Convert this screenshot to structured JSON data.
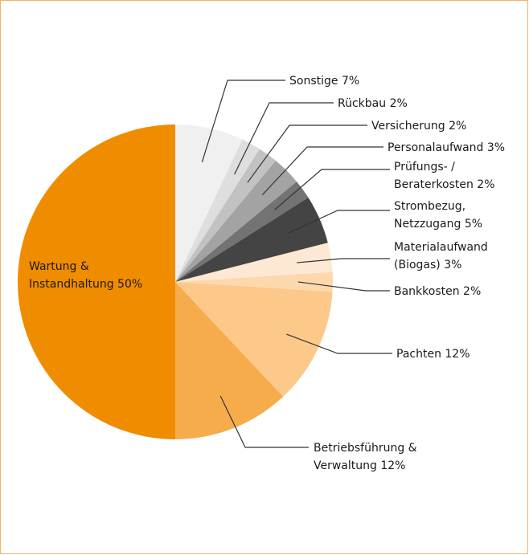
{
  "chart_data": {
    "type": "pie",
    "labels": [
      [
        "Sonstige 7%"
      ],
      [
        "Rückbau 2%"
      ],
      [
        "Versicherung 2%"
      ],
      [
        "Personalaufwand 3%"
      ],
      [
        "Prüfungs- /",
        "Beraterkosten 2%"
      ],
      [
        "Strombezug,",
        "Netzzugang 5%"
      ],
      [
        "Materialaufwand",
        "(Biogas) 3%"
      ],
      [
        "Bankkosten 2%"
      ],
      [
        "Pachten 12%"
      ],
      [
        "Betriebsführung &",
        "Verwaltung 12%"
      ],
      [
        "Wartung &",
        "Instandhaltung 50%"
      ]
    ],
    "values": [
      7,
      2,
      2,
      3,
      2,
      5,
      3,
      2,
      12,
      12,
      50
    ],
    "colors": [
      "#f0f0f0",
      "#dedede",
      "#c2c2c2",
      "#a3a3a3",
      "#737373",
      "#444444",
      "#fde9d3",
      "#fdd8ad",
      "#fcc98a",
      "#f7ac4b",
      "#f08c00"
    ]
  }
}
